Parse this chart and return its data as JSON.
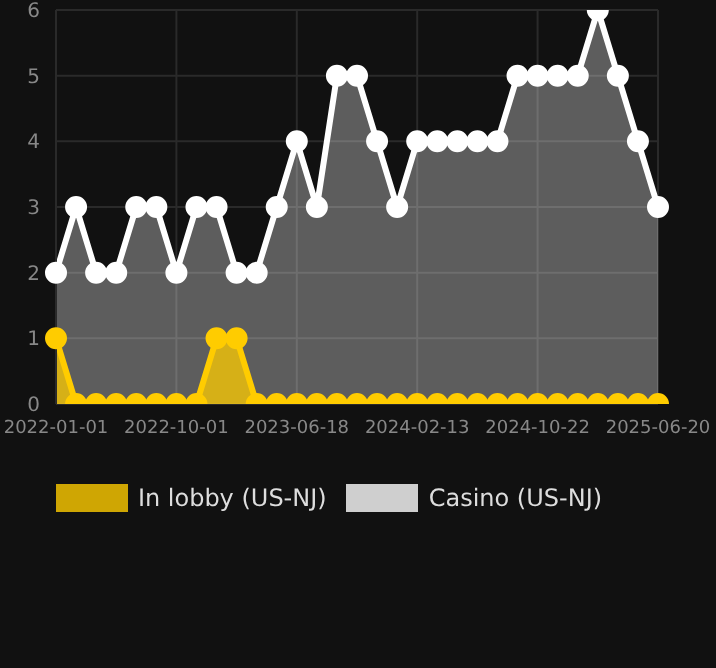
{
  "chart_data": {
    "type": "area",
    "categories": [
      "2022-01-01",
      null,
      null,
      null,
      null,
      null,
      "2022-10-01",
      null,
      null,
      null,
      null,
      null,
      "2023-06-18",
      null,
      null,
      null,
      null,
      null,
      "2024-02-13",
      null,
      null,
      null,
      null,
      null,
      "2024-10-22",
      null,
      null,
      null,
      null,
      null,
      "2025-06-20"
    ],
    "series": [
      {
        "name": "In lobby (US-NJ)",
        "color": "#ffcc00",
        "values": [
          1,
          0,
          0,
          0,
          0,
          0,
          0,
          0,
          1,
          1,
          0,
          0,
          0,
          0,
          0,
          0,
          0,
          0,
          0,
          0,
          0,
          0,
          0,
          0,
          0,
          0,
          0,
          0,
          0,
          0,
          0
        ]
      },
      {
        "name": "Casino (US-NJ)",
        "color": "#ffffff",
        "values": [
          2,
          3,
          2,
          2,
          3,
          3,
          2,
          3,
          3,
          2,
          2,
          3,
          4,
          3,
          5,
          5,
          4,
          3,
          4,
          4,
          4,
          4,
          4,
          5,
          5,
          5,
          5,
          6,
          5,
          4,
          3
        ]
      }
    ],
    "ylim": [
      0,
      6
    ],
    "yticks": [
      0,
      1,
      2,
      3,
      4,
      5,
      6
    ],
    "grid": true,
    "legend": "bottom",
    "marker": "circle",
    "line_style": "solid"
  }
}
